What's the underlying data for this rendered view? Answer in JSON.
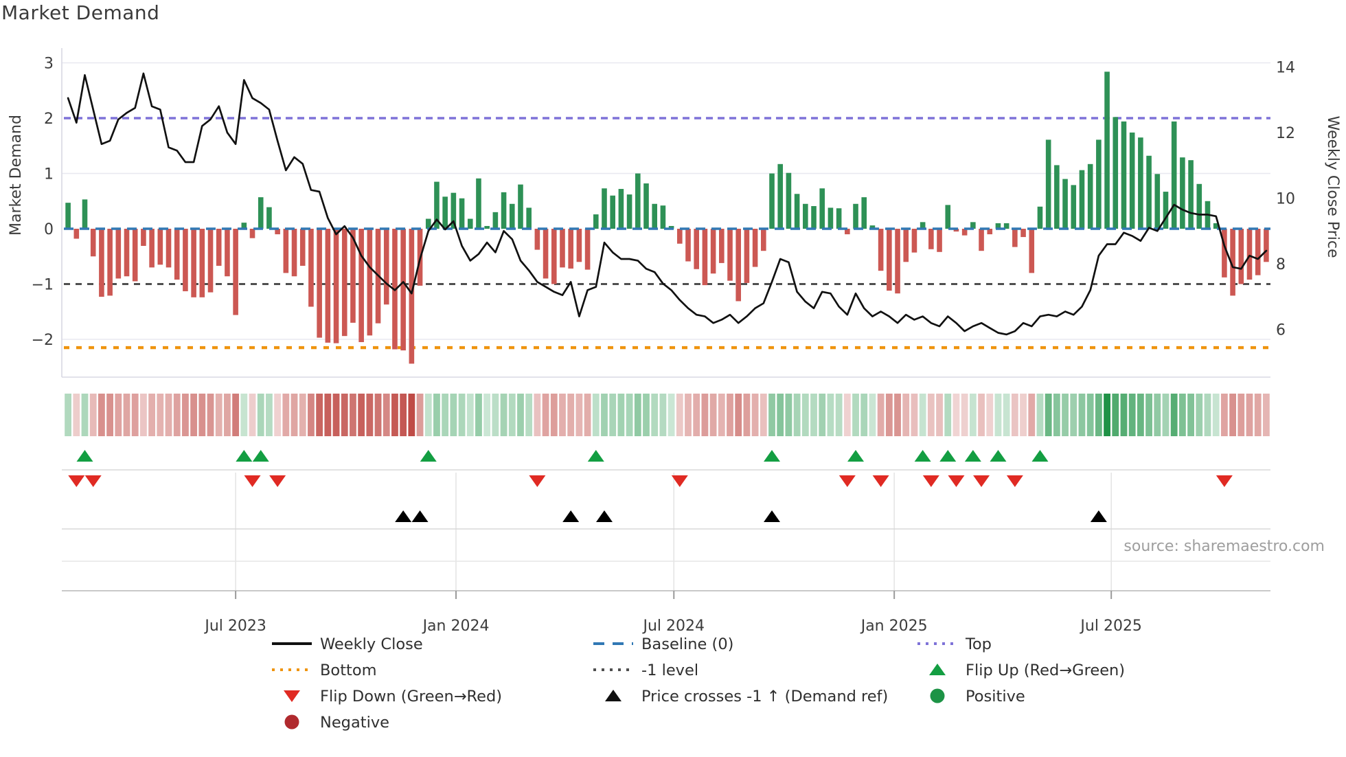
{
  "title": "Market Demand",
  "source": "source: sharemaestro.com",
  "left_axis": {
    "label": "Market Demand",
    "ticks": [
      {
        "v": 3,
        "label": "3"
      },
      {
        "v": 2,
        "label": "2"
      },
      {
        "v": 1,
        "label": "1"
      },
      {
        "v": 0,
        "label": "0"
      },
      {
        "v": -1,
        "label": "−1"
      },
      {
        "v": -2,
        "label": "−2"
      }
    ]
  },
  "right_axis": {
    "label": "Weekly Close Price",
    "ticks": [
      {
        "p": 14,
        "label": "14"
      },
      {
        "p": 12,
        "label": "12"
      },
      {
        "p": 10,
        "label": "10"
      },
      {
        "p": 8,
        "label": "8"
      },
      {
        "p": 6,
        "label": "6"
      }
    ]
  },
  "x_axis": {
    "ticks": [
      {
        "week": 20.5,
        "label": "Jul 2023"
      },
      {
        "week": 46.8,
        "label": "Jan 2024"
      },
      {
        "week": 72.8,
        "label": "Jul 2024"
      },
      {
        "week": 99.1,
        "label": "Jan 2025"
      },
      {
        "week": 125.0,
        "label": "Jul 2025"
      }
    ]
  },
  "reference_lines": {
    "top": {
      "value": 2,
      "label": "Top"
    },
    "baseline": {
      "value": 0,
      "label": "Baseline (0)"
    },
    "minus1": {
      "value": -1,
      "label": "-1 level"
    },
    "bottom": {
      "value": -2.15,
      "label": "Bottom"
    }
  },
  "colors": {
    "bar_positive": "#2e9156",
    "bar_negative": "#cc5853",
    "price_line": "#111111",
    "baseline": "#3178b4",
    "top_line": "#7e72d8",
    "bottom_line": "#ef940e",
    "minus1_line": "#4f4f4f",
    "flip_up": "#139e42",
    "flip_down": "#e02a23",
    "positive_dot": "#1d9346",
    "negative_dot": "#b02a2e",
    "strip_positive": "#1e9245",
    "strip_negative": "#bf4a45",
    "grid": "#e8e8f0",
    "panel_grid": "#d8d8d8",
    "spine": "#d9d9e3",
    "axis_text": "#3c3c3c",
    "source_text": "#9e9e9e"
  },
  "legend": {
    "items": [
      {
        "label": "Weekly Close",
        "swatch": "line",
        "color": "#111111",
        "col": 0,
        "row": 0
      },
      {
        "label": "Baseline (0)",
        "swatch": "dashes",
        "color": "#3178b4",
        "col": 1,
        "row": 0
      },
      {
        "label": "Top",
        "swatch": "dots",
        "color": "#7e72d8",
        "col": 2,
        "row": 0
      },
      {
        "label": "Bottom",
        "swatch": "dots",
        "color": "#ef940e",
        "col": 0,
        "row": 1
      },
      {
        "label": "-1 level",
        "swatch": "dots",
        "color": "#4f4f4f",
        "col": 1,
        "row": 1
      },
      {
        "label": "Flip Up (Red→Green)",
        "swatch": "tri-up",
        "color": "#139e42",
        "col": 2,
        "row": 1
      },
      {
        "label": "Flip Down (Green→Red)",
        "swatch": "tri-down",
        "color": "#e02a23",
        "col": 0,
        "row": 2
      },
      {
        "label": "Price crosses -1 ↑ (Demand ref)",
        "swatch": "tri-up",
        "color": "#111111",
        "col": 1,
        "row": 2
      },
      {
        "label": "Positive",
        "swatch": "circle",
        "color": "#1d9346",
        "col": 2,
        "row": 2
      },
      {
        "label": "Negative",
        "swatch": "circle",
        "color": "#b02a2e",
        "col": 0,
        "row": 3
      }
    ]
  },
  "chart_data": {
    "type": "combo",
    "weeks": 144,
    "x_range_labels": [
      "Jul 2023",
      "Jan 2024",
      "Jul 2024",
      "Jan 2025",
      "Jul 2025"
    ],
    "ylim_left": [
      -2.68,
      3.27
    ],
    "ylim_right": [
      4.55,
      14.57
    ],
    "series": [
      {
        "name": "Market Demand",
        "type": "bar",
        "axis": "left",
        "values": [
          0.47,
          -0.18,
          0.53,
          -0.5,
          -1.23,
          -1.21,
          -0.9,
          -0.86,
          -0.95,
          -0.31,
          -0.7,
          -0.65,
          -0.7,
          -0.92,
          -1.13,
          -1.24,
          -1.24,
          -1.15,
          -0.67,
          -0.86,
          -1.56,
          0.11,
          -0.17,
          0.57,
          0.39,
          -0.1,
          -0.8,
          -0.86,
          -0.67,
          -1.41,
          -1.97,
          -2.06,
          -2.07,
          -1.94,
          -1.7,
          -2.05,
          -1.93,
          -1.71,
          -1.37,
          -2.18,
          -2.2,
          -2.44,
          -1.03,
          0.18,
          0.85,
          0.58,
          0.65,
          0.55,
          0.18,
          0.91,
          0.05,
          0.3,
          0.66,
          0.45,
          0.8,
          0.38,
          -0.38,
          -0.9,
          -1.0,
          -0.7,
          -0.72,
          -0.6,
          -0.74,
          0.26,
          0.73,
          0.6,
          0.72,
          0.62,
          1.0,
          0.82,
          0.45,
          0.42,
          0.05,
          -0.27,
          -0.59,
          -0.73,
          -1.02,
          -0.81,
          -0.62,
          -0.94,
          -1.31,
          -0.98,
          -0.69,
          -0.4,
          1.0,
          1.17,
          1.01,
          0.63,
          0.45,
          0.41,
          0.73,
          0.38,
          0.37,
          -0.1,
          0.45,
          0.57,
          0.06,
          -0.76,
          -1.12,
          -1.17,
          -0.6,
          -0.43,
          0.12,
          -0.37,
          -0.42,
          0.43,
          -0.05,
          -0.12,
          0.12,
          -0.4,
          -0.1,
          0.1,
          0.1,
          -0.33,
          -0.15,
          -0.8,
          0.4,
          1.61,
          1.15,
          0.9,
          0.79,
          1.06,
          1.17,
          1.61,
          2.84,
          2.02,
          1.94,
          1.74,
          1.65,
          1.32,
          0.99,
          0.67,
          1.94,
          1.29,
          1.24,
          0.81,
          0.5,
          0.1,
          -0.88,
          -1.21,
          -1.0,
          -0.92,
          -0.84,
          -0.6
        ]
      },
      {
        "name": "Weekly Close",
        "type": "line",
        "axis": "right",
        "values": [
          13.05,
          12.3,
          13.75,
          12.7,
          11.65,
          11.75,
          12.4,
          12.6,
          12.75,
          13.8,
          12.8,
          12.7,
          11.55,
          11.45,
          11.1,
          11.1,
          12.2,
          12.4,
          12.8,
          12.0,
          11.65,
          13.6,
          13.05,
          12.9,
          12.7,
          11.75,
          10.85,
          11.25,
          11.05,
          10.25,
          10.2,
          9.4,
          8.9,
          9.15,
          8.8,
          8.25,
          7.9,
          7.65,
          7.4,
          7.2,
          7.45,
          7.1,
          8.15,
          9.0,
          9.35,
          9.05,
          9.3,
          8.55,
          8.1,
          8.3,
          8.65,
          8.35,
          9.0,
          8.75,
          8.1,
          7.8,
          7.45,
          7.3,
          7.15,
          7.05,
          7.45,
          6.4,
          7.2,
          7.3,
          8.65,
          8.35,
          8.15,
          8.15,
          8.1,
          7.85,
          7.75,
          7.4,
          7.2,
          6.9,
          6.65,
          6.45,
          6.4,
          6.2,
          6.3,
          6.45,
          6.2,
          6.4,
          6.65,
          6.8,
          7.45,
          8.15,
          8.05,
          7.15,
          6.85,
          6.65,
          7.15,
          7.1,
          6.7,
          6.45,
          7.1,
          6.65,
          6.4,
          6.55,
          6.4,
          6.2,
          6.45,
          6.3,
          6.4,
          6.2,
          6.1,
          6.4,
          6.2,
          5.95,
          6.1,
          6.2,
          6.05,
          5.9,
          5.85,
          5.95,
          6.2,
          6.1,
          6.4,
          6.45,
          6.4,
          6.55,
          6.45,
          6.7,
          7.2,
          8.25,
          8.6,
          8.6,
          8.95,
          8.85,
          8.7,
          9.1,
          9.0,
          9.4,
          9.8,
          9.65,
          9.55,
          9.5,
          9.5,
          9.45,
          8.55,
          7.9,
          7.85,
          8.25,
          8.15,
          8.4
        ]
      }
    ],
    "markers": {
      "flip_up_weeks": [
        3,
        22,
        24,
        44,
        64,
        85,
        95,
        103,
        106,
        109,
        112,
        117
      ],
      "flip_down_weeks": [
        2,
        4,
        23,
        26,
        57,
        74,
        94,
        98,
        104,
        107,
        110,
        114,
        139
      ],
      "price_cross_weeks": [
        41,
        43,
        61,
        65,
        85,
        124
      ]
    },
    "heat_strip": "per-week cell tinted by Market Demand sign and magnitude (green positive, red negative)"
  }
}
